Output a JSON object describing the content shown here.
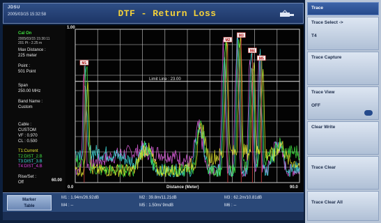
{
  "header": {
    "brand": "JDSU",
    "datetime": "2005/03/15 15:32:58",
    "title": "DTF - Return Loss"
  },
  "info": {
    "cal_state": "Cal On",
    "cal_detail_1": "2005/03/15 15:30:11",
    "cal_detail_2": "201 Pt - 2.25 m",
    "max_distance_label": "Max Distance :",
    "max_distance_value": "225 meter",
    "points_label": "Point :",
    "points_value": "501 Point",
    "span_label": "Span",
    "span_value": "250.00 MHz",
    "band_label": "Band Name :",
    "band_value": "Custom",
    "cable_label": "Cable :",
    "cable_value": "CUSTOM",
    "vf_value": "VF : 0.970",
    "cl_value": "CL : 0.500",
    "trace_current": "T1:Current",
    "trace_2": "T2:DIST_2.B",
    "trace_3": "T3:DIST_3.B",
    "trace_4": "T4:DIST_4.B",
    "rise_label": "Rise/Set :",
    "rise_value": "Off"
  },
  "plot": {
    "y_top_label": "1.00",
    "y_bottom_label": "60.00",
    "x_left_label": "0.0",
    "x_right_label": "90.0",
    "x_axis_title": "Distance (Meter)",
    "limit_line_label": "Limit Line : 23.00",
    "markers": [
      "M1",
      "M2",
      "M3",
      "M4",
      "M5"
    ]
  },
  "marker_table": {
    "button_label_1": "Marker",
    "button_label_2": "Table",
    "m1": "M1 : 1.94m/26.92dB",
    "m2": "M2 : 39.8m/11.21dB",
    "m3": "M3 : 62.2m/10.81dB",
    "m4": "M4 : --",
    "m5": "M5 : 1.50m/ 9mdB",
    "m6": "M6 : --"
  },
  "softkeys": {
    "title": "Trace",
    "trace_select": "Trace Select ->",
    "trace_select_value": "T4",
    "trace_capture": "Trace Capture",
    "trace_view": "Trace View",
    "trace_view_value": "OFF",
    "clear_write": "Clear Write",
    "trace_clear": "Trace Clear",
    "trace_clear_all": "Trace Clear All"
  },
  "colors": {
    "trace_yellow": "#e8e830",
    "trace_green": "#40e040",
    "trace_cyan": "#40e0e0",
    "trace_magenta": "#e060e0",
    "title": "#f5d23a"
  }
}
